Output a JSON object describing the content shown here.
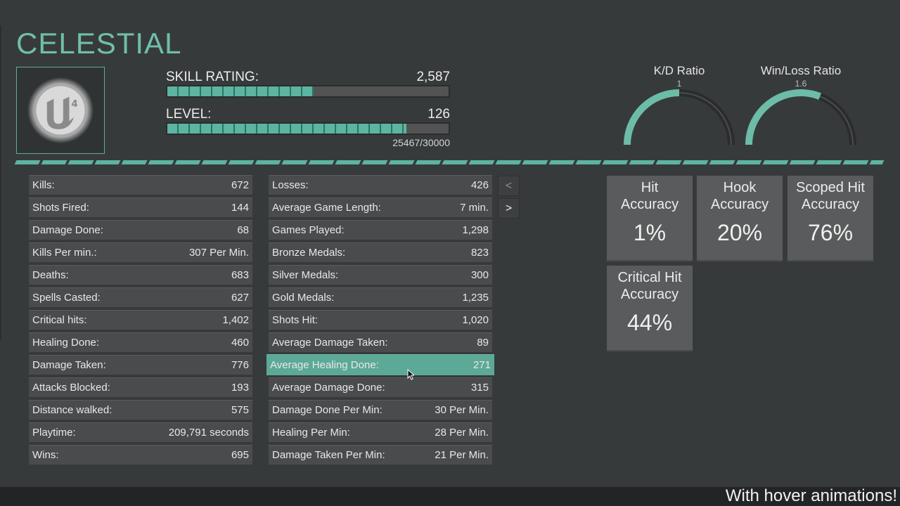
{
  "player": {
    "name": "CELESTIAL",
    "avatar_icon": "unreal-engine-4-logo"
  },
  "skill": {
    "label": "SKILL RATING:",
    "value": "2,587",
    "fraction": 0.52
  },
  "level": {
    "label": "LEVEL:",
    "value": "126",
    "xp": "25467/30000",
    "fraction": 0.85
  },
  "gauges": [
    {
      "title": "K/D Ratio",
      "value": "1",
      "fraction": 0.5
    },
    {
      "title": "Win/Loss Ratio",
      "value": "1.6",
      "fraction": 0.62
    }
  ],
  "left_stats": [
    {
      "label": "Kills:",
      "value": "672"
    },
    {
      "label": "Shots Fired:",
      "value": "144"
    },
    {
      "label": "Damage Done:",
      "value": "68"
    },
    {
      "label": "Kills Per min.:",
      "value": "307 Per Min."
    },
    {
      "label": "Deaths:",
      "value": "683"
    },
    {
      "label": "Spells Casted:",
      "value": "627"
    },
    {
      "label": "Critical hits:",
      "value": "1,402"
    },
    {
      "label": "Healing Done:",
      "value": "460"
    },
    {
      "label": "Damage Taken:",
      "value": "776"
    },
    {
      "label": "Attacks Blocked:",
      "value": "193"
    },
    {
      "label": "Distance walked:",
      "value": "575"
    },
    {
      "label": "Playtime:",
      "value": "209,791 seconds"
    },
    {
      "label": "Wins:",
      "value": "695"
    }
  ],
  "right_stats": [
    {
      "label": "Losses:",
      "value": "426"
    },
    {
      "label": "Average Game Length:",
      "value": "7 min."
    },
    {
      "label": "Games Played:",
      "value": "1,298"
    },
    {
      "label": "Bronze  Medals:",
      "value": "823"
    },
    {
      "label": "Silver Medals:",
      "value": "300"
    },
    {
      "label": "Gold Medals:",
      "value": "1,235"
    },
    {
      "label": "Shots Hit:",
      "value": "1,020"
    },
    {
      "label": "Average Damage Taken:",
      "value": "89"
    },
    {
      "label": "Average Healing Done:",
      "value": "271",
      "active": true
    },
    {
      "label": "Average Damage Done:",
      "value": "315"
    },
    {
      "label": "Damage Done Per Min:",
      "value": "30 Per Min."
    },
    {
      "label": "Healing Per Min:",
      "value": "28 Per Min."
    },
    {
      "label": "Damage Taken Per Min:",
      "value": "21 Per Min."
    }
  ],
  "nav": {
    "prev": "<",
    "next": ">"
  },
  "accuracy": [
    {
      "title_1": "Hit",
      "title_2": "Accuracy",
      "value": "1%"
    },
    {
      "title_1": "Hook",
      "title_2": "Accuracy",
      "value": "20%"
    },
    {
      "title_1": "Scoped Hit",
      "title_2": "Accuracy",
      "value": "76%"
    },
    {
      "title_1": "Critical Hit",
      "title_2": "Accuracy",
      "value": "44%"
    }
  ],
  "footer": {
    "caption": "With hover animations!"
  },
  "colors": {
    "accent": "#5db4a0",
    "title": "#6fbfaa",
    "panel": "#373a3b",
    "row": "#4a4b4c",
    "card": "#5a5b5c"
  }
}
